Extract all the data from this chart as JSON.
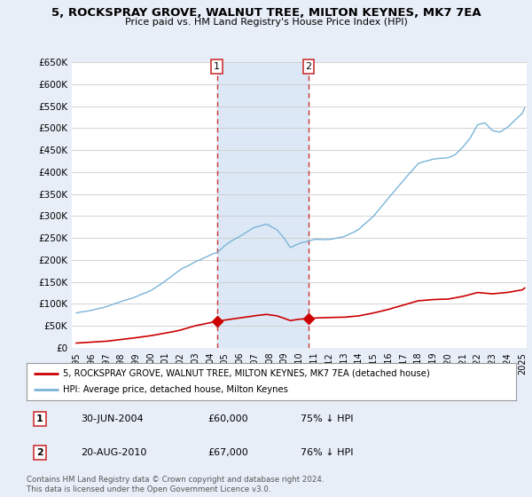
{
  "title": "5, ROCKSPRAY GROVE, WALNUT TREE, MILTON KEYNES, MK7 7EA",
  "subtitle": "Price paid vs. HM Land Registry's House Price Index (HPI)",
  "hpi_label": "HPI: Average price, detached house, Milton Keynes",
  "price_label": "5, ROCKSPRAY GROVE, WALNUT TREE, MILTON KEYNES, MK7 7EA (detached house)",
  "hpi_color": "#7ab4d8",
  "price_color": "#cc0000",
  "sale1_year": 2004.46,
  "sale1_price": 60000,
  "sale1_hpi_pct": "75% ↓ HPI",
  "sale1_date": "30-JUN-2004",
  "sale2_year": 2010.63,
  "sale2_price": 67000,
  "sale2_hpi_pct": "76% ↓ HPI",
  "sale2_date": "20-AUG-2010",
  "ylim": [
    0,
    650000
  ],
  "yticks": [
    0,
    50000,
    100000,
    150000,
    200000,
    250000,
    300000,
    350000,
    400000,
    450000,
    500000,
    550000,
    600000,
    650000
  ],
  "xlim_start": 1994.7,
  "xlim_end": 2025.3,
  "footer": "Contains HM Land Registry data © Crown copyright and database right 2024.\nThis data is licensed under the Open Government Licence v3.0.",
  "background_color": "#e8eef8",
  "plot_bg_color": "#ffffff",
  "grid_color": "#cccccc",
  "span_color": "#dce8f5"
}
